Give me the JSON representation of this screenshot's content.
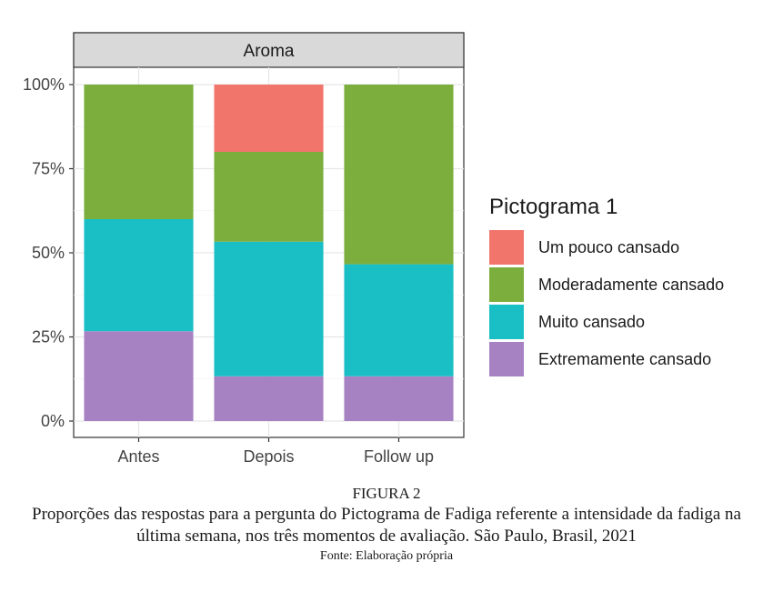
{
  "chart_data": {
    "type": "bar",
    "stacked": true,
    "facet_label": "Aroma",
    "categories": [
      "Antes",
      "Depois",
      "Follow up"
    ],
    "series": [
      {
        "name": "Extremamente cansado",
        "color": "#a782c3",
        "values": [
          26.7,
          13.3,
          13.3
        ]
      },
      {
        "name": "Muito cansado",
        "color": "#1abfc6",
        "values": [
          33.3,
          40.0,
          33.3
        ]
      },
      {
        "name": "Moderadamente cansado",
        "color": "#7cae3e",
        "values": [
          40.0,
          26.7,
          53.4
        ]
      },
      {
        "name": "Um pouco cansado",
        "color": "#f2756c",
        "values": [
          0,
          20.0,
          0
        ]
      }
    ],
    "legend": {
      "title": "Pictograma 1",
      "order": [
        "Um pouco cansado",
        "Moderadamente cansado",
        "Muito cansado",
        "Extremamente cansado"
      ],
      "position": "right"
    },
    "yticks": [
      "0%",
      "25%",
      "50%",
      "75%",
      "100%"
    ],
    "ylim": [
      0,
      100
    ],
    "grid": true
  },
  "caption": {
    "label": "FIGURA 2",
    "text": "Proporções das respostas para a pergunta do Pictograma de Fadiga referente a intensidade da fadiga na última semana, nos três momentos de avaliação. São Paulo, Brasil, 2021",
    "source": "Fonte: Elaboração própria"
  }
}
